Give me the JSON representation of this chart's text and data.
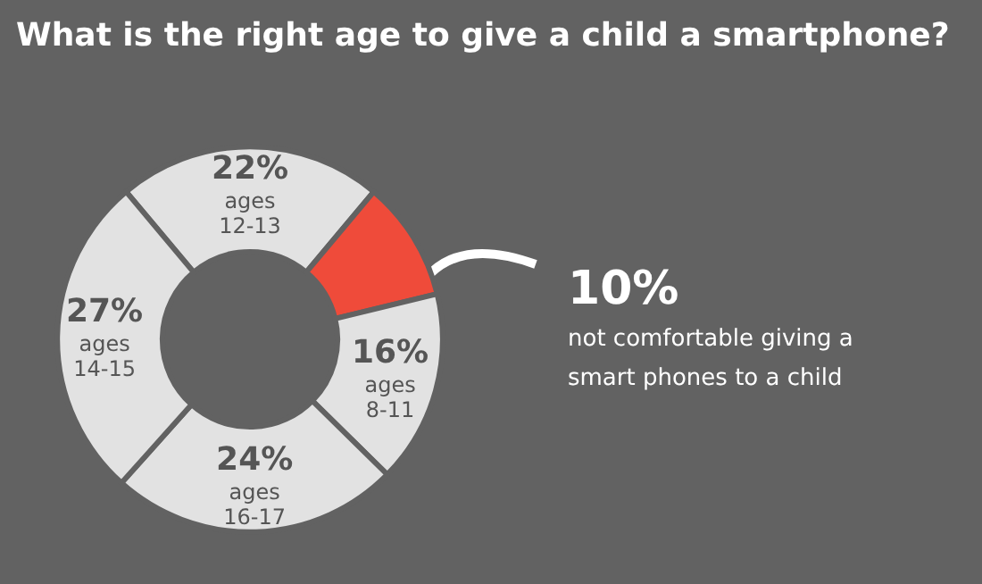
{
  "chart_data": {
    "type": "donut",
    "title": "What is the right age to give a child a smartphone?",
    "categories": [
      "ages 12-13",
      "not comfortable giving a smart phones to a child",
      "ages 8-11",
      "ages 16-17",
      "ages 14-15"
    ],
    "values": [
      22,
      10,
      16,
      24,
      27
    ],
    "value_labels": [
      "22%",
      "10%",
      "16%",
      "24%",
      "27%"
    ],
    "colors": [
      "#e2e2e2",
      "#ef4b3a",
      "#e2e2e2",
      "#e2e2e2",
      "#e2e2e2"
    ],
    "legend": false
  }
}
